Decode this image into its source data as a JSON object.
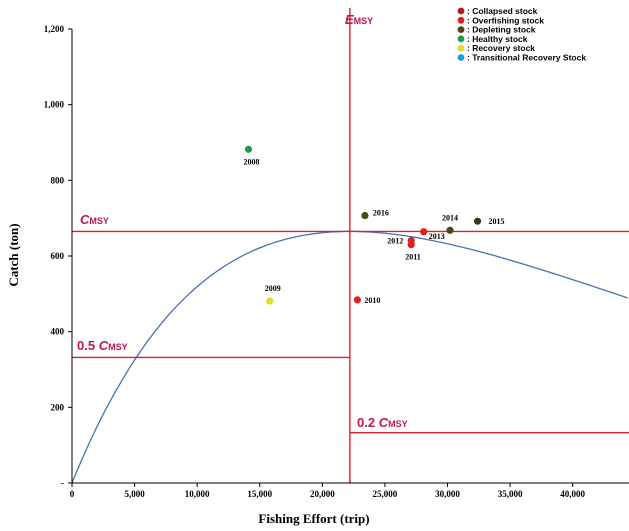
{
  "chart_data": {
    "type": "scatter",
    "xlabel": "Fishing Effort (trip)",
    "ylabel": "Catch (ton)",
    "xlim": [
      0,
      44500
    ],
    "ylim": [
      0,
      1200
    ],
    "x_ticks": [
      0,
      5000,
      10000,
      15000,
      20000,
      25000,
      30000,
      35000,
      40000
    ],
    "x_tick_labels": [
      "0",
      "5,000",
      "10,000",
      "15,000",
      "20,000",
      "25,000",
      "30,000",
      "35,000",
      "40,000"
    ],
    "y_ticks": [
      0,
      200,
      400,
      600,
      800,
      1000,
      1200
    ],
    "y_tick_labels": [
      "-",
      "200",
      "400",
      "600",
      "800",
      "1,000",
      "1,200"
    ],
    "grid": false,
    "legend_position": "top-right",
    "legend": [
      {
        "label": ": Collapsed stock",
        "color": "#b81818"
      },
      {
        "label": ": Overfishing stock",
        "color": "#e0201c"
      },
      {
        "label": ": Depleting stock",
        "color": "#5c3a14"
      },
      {
        "label": ": Healthy stock",
        "color": "#1e9a4a"
      },
      {
        "label": ": Recovery stock",
        "color": "#dede2c"
      },
      {
        "label": ": Transitional Recovery Stock",
        "color": "#1aa0d8"
      }
    ],
    "points": [
      {
        "year": "2008",
        "x": 14100,
        "y": 882,
        "color": "#1e9a4a"
      },
      {
        "year": "2009",
        "x": 15800,
        "y": 481,
        "color": "#dede2c"
      },
      {
        "year": "2010",
        "x": 22800,
        "y": 484,
        "color": "#e0201c"
      },
      {
        "year": "2011",
        "x": 27100,
        "y": 630,
        "color": "#e0201c"
      },
      {
        "year": "2012",
        "x": 27100,
        "y": 641,
        "color": "#e0201c"
      },
      {
        "year": "2013",
        "x": 28100,
        "y": 664,
        "color": "#e0201c"
      },
      {
        "year": "2014",
        "x": 30200,
        "y": 668,
        "color": "#4a4a14"
      },
      {
        "year": "2015",
        "x": 32400,
        "y": 692,
        "color": "#3a3a10"
      },
      {
        "year": "2016",
        "x": 23400,
        "y": 707,
        "color": "#4a4a14"
      }
    ],
    "curve": {
      "msy": 665,
      "e_msy": 22200,
      "color": "#4a72b0"
    },
    "reference_lines": {
      "color": "#e02028",
      "e_msy": {
        "main": "E",
        "sub": "MSY"
      },
      "c_msy": {
        "main": "C",
        "sub": "MSY",
        "value": 665
      },
      "half_c_msy": {
        "coef": "0.5 ",
        "main": "C",
        "sub": "MSY",
        "value": 332
      },
      "fifth_c_msy": {
        "coef": "0.2 ",
        "main": "C",
        "sub": "MSY",
        "value": 133
      }
    }
  }
}
